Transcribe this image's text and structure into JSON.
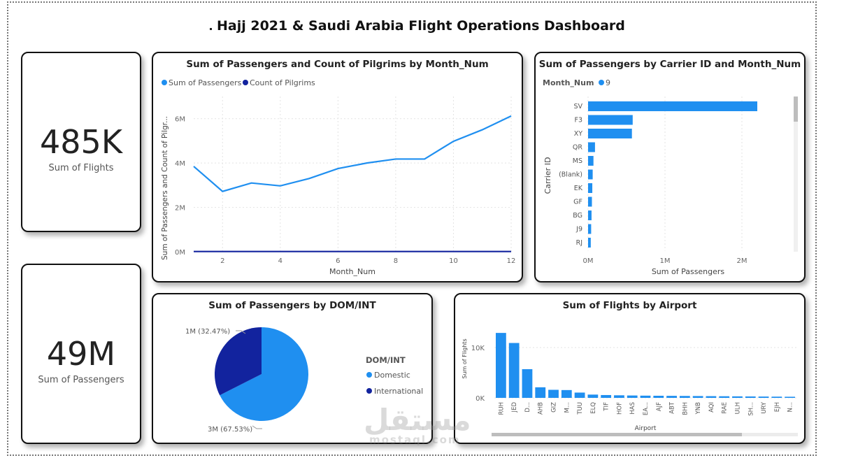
{
  "dashboard": {
    "title": "Hajj 2021 & Saudi Arabia Flight Operations Dashboard"
  },
  "kpis": [
    {
      "value": "485K",
      "label": "Sum of Flights"
    },
    {
      "value": "49M",
      "label": "Sum of Passengers"
    }
  ],
  "colors": {
    "light_blue": "#1f8ff0",
    "dark_blue": "#12239e",
    "grid": "#e3e3e3"
  },
  "watermark": {
    "text": "مستقل",
    "sub": "mostaql.com"
  },
  "chart_data": [
    {
      "id": "line",
      "type": "line",
      "title": "Sum of Passengers and Count of Pilgrims by Month_Num",
      "xlabel": "Month_Num",
      "ylabel": "Sum of Passengers and Count of Pilgr...",
      "x": [
        1,
        2,
        3,
        4,
        5,
        6,
        7,
        8,
        9,
        10,
        11,
        12
      ],
      "x_ticks": [
        "2",
        "4",
        "6",
        "8",
        "10",
        "12"
      ],
      "y_ticks": [
        "0M",
        "2M",
        "4M",
        "6M"
      ],
      "ylim": [
        0,
        7
      ],
      "grid": true,
      "legend_placement": "top-left",
      "series": [
        {
          "name": "Sum of Passengers",
          "color": "#1f8ff0",
          "values": [
            3.85,
            2.72,
            3.1,
            2.97,
            3.3,
            3.75,
            4.0,
            4.18,
            4.18,
            4.98,
            5.5,
            6.12
          ]
        },
        {
          "name": "Count of Pilgrims",
          "color": "#12239e",
          "values": [
            0.01,
            0.01,
            0.01,
            0.01,
            0.01,
            0.01,
            0.01,
            0.01,
            0.01,
            0.01,
            0.01,
            0.01
          ]
        }
      ]
    },
    {
      "id": "carrier",
      "type": "bar",
      "orientation": "horizontal",
      "title": "Sum of Passengers by Carrier ID and Month_Num",
      "legend_title": "Month_Num",
      "legend_items": [
        "9"
      ],
      "xlabel": "Sum of Passengers",
      "ylabel": "Carrier ID",
      "categories": [
        "SV",
        "F3",
        "XY",
        "QR",
        "MS",
        "(Blank)",
        "EK",
        "GF",
        "BG",
        "J9",
        "RJ"
      ],
      "values": [
        2.2,
        0.58,
        0.57,
        0.09,
        0.07,
        0.06,
        0.055,
        0.05,
        0.045,
        0.04,
        0.035
      ],
      "x_ticks": [
        "0M",
        "1M",
        "2M"
      ],
      "xlim": [
        0,
        2.5
      ]
    },
    {
      "id": "pie",
      "type": "pie",
      "title": "Sum of Passengers by DOM/INT",
      "legend_title": "DOM/INT",
      "slices": [
        {
          "name": "Domestic",
          "value": 67.53,
          "label": "3M (67.53%)",
          "color": "#1f8ff0"
        },
        {
          "name": "International",
          "value": 32.47,
          "label": "1M (32.47%)",
          "color": "#12239e"
        }
      ]
    },
    {
      "id": "airport",
      "type": "bar",
      "title": "Sum of Flights by Airport",
      "xlabel": "Airport",
      "ylabel": "Sum of Flights",
      "categories": [
        "RUH",
        "JED",
        "D...",
        "AHB",
        "GIZ",
        "M...",
        "TUU",
        "ELQ",
        "TIF",
        "HOF",
        "HAS",
        "EA...",
        "AJF",
        "ABT",
        "BHH",
        "YNB",
        "AQI",
        "RAE",
        "ULH",
        "SH...",
        "URY",
        "EJH",
        "N..."
      ],
      "values": [
        12900,
        10900,
        5700,
        2100,
        1600,
        1550,
        1050,
        650,
        560,
        510,
        470,
        440,
        420,
        400,
        380,
        360,
        340,
        320,
        300,
        280,
        260,
        240,
        220
      ],
      "y_ticks": [
        "0K",
        "10K"
      ],
      "ylim": [
        0,
        15000
      ]
    }
  ]
}
